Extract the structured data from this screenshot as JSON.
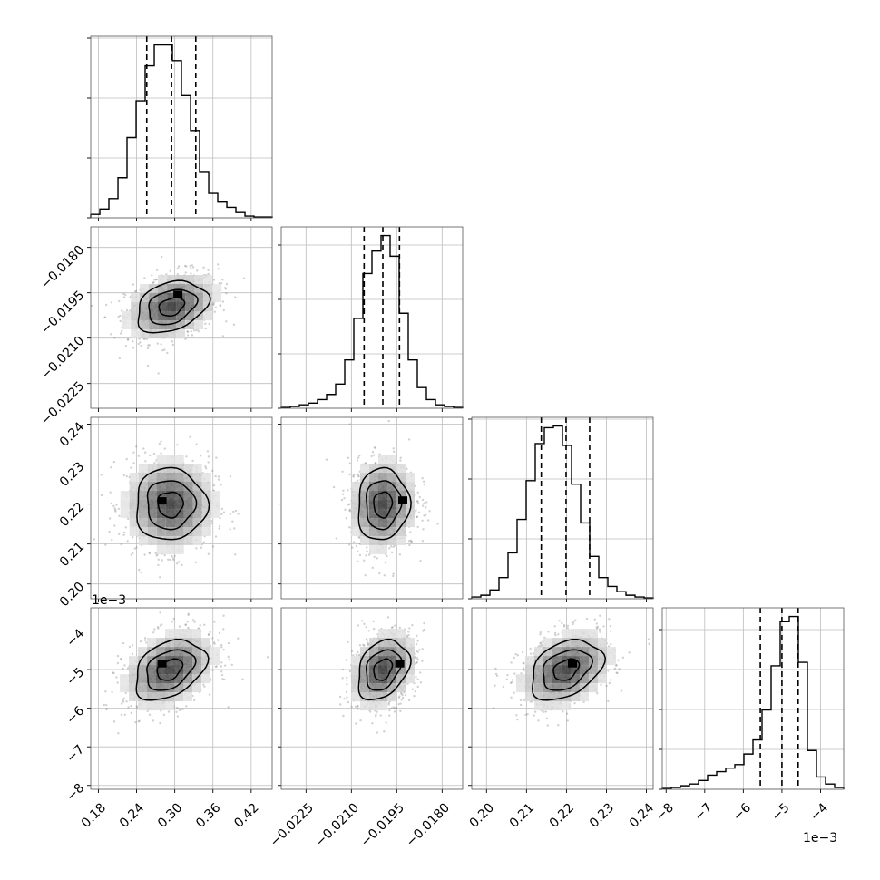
{
  "chart_data": {
    "type": "corner",
    "grid": true,
    "parameters": [
      {
        "index": 0,
        "range": [
          0.168,
          0.453
        ],
        "ticks": [
          0.18,
          0.24,
          0.3,
          0.36,
          0.42
        ],
        "tick_labels": [
          "0.18",
          "0.24",
          "0.30",
          "0.36",
          "0.42"
        ],
        "offset_text": "",
        "quantiles": [
          0.256,
          0.295,
          0.333
        ],
        "hist_bins": [
          0.168,
          0.1823,
          0.1965,
          0.2108,
          0.225,
          0.2393,
          0.2535,
          0.2678,
          0.282,
          0.2963,
          0.3105,
          0.3248,
          0.339,
          0.3533,
          0.3675,
          0.3818,
          0.396,
          0.4103,
          0.4245,
          0.4388,
          0.453
        ],
        "hist_counts": [
          2,
          5,
          11,
          23,
          46,
          67,
          87,
          99,
          99,
          90,
          70,
          50,
          26,
          14,
          9,
          6,
          3,
          1,
          0.5,
          0.5
        ],
        "hist_ticks_fraction": [
          0.0,
          0.33,
          0.66,
          0.99
        ]
      },
      {
        "index": 1,
        "range": [
          -0.02332,
          -0.01732
        ],
        "ticks": [
          -0.0225,
          -0.021,
          -0.0195,
          -0.018
        ],
        "tick_labels": [
          "−0.0225",
          "−0.0210",
          "−0.0195",
          "−0.0180"
        ],
        "offset_text": "",
        "quantiles": [
          -0.02058,
          -0.01996,
          -0.01941
        ],
        "hist_bins": [
          -0.02332,
          -0.02302,
          -0.02272,
          -0.02242,
          -0.02212,
          -0.02182,
          -0.02152,
          -0.02122,
          -0.02092,
          -0.02062,
          -0.02032,
          -0.02002,
          -0.01972,
          -0.01942,
          -0.01912,
          -0.01882,
          -0.01852,
          -0.01822,
          -0.01792,
          -0.01762,
          -0.01732
        ],
        "hist_counts": [
          0.5,
          1,
          2,
          3,
          5,
          8,
          14,
          28,
          52,
          78,
          91,
          100,
          88,
          55,
          28,
          12,
          5,
          2,
          1,
          0.5
        ],
        "hist_ticks_fraction": [
          0.0,
          0.3,
          0.6,
          0.9
        ]
      },
      {
        "index": 2,
        "range": [
          0.1963,
          0.2417
        ],
        "ticks": [
          0.2,
          0.21,
          0.22,
          0.23,
          0.24
        ],
        "tick_labels": [
          "0.20",
          "0.21",
          "0.22",
          "0.23",
          "0.24"
        ],
        "offset_text": "",
        "quantiles": [
          0.2137,
          0.2199,
          0.2258
        ],
        "hist_bins": [
          0.1963,
          0.19857,
          0.20084,
          0.20311,
          0.20538,
          0.20765,
          0.20992,
          0.21219,
          0.21446,
          0.21673,
          0.219,
          0.22127,
          0.22354,
          0.22581,
          0.22808,
          0.23035,
          0.23262,
          0.23489,
          0.23716,
          0.23943,
          0.2417
        ],
        "hist_counts": [
          1,
          2,
          5,
          12,
          26,
          45,
          67,
          88,
          97,
          98,
          87,
          65,
          43,
          24,
          12,
          7,
          4,
          2,
          1,
          0.5
        ],
        "hist_ticks_fraction": [
          0.0,
          0.33,
          0.66,
          0.99
        ]
      },
      {
        "index": 3,
        "range": [
          -8.1,
          -3.4
        ],
        "ticks": [
          -8,
          -7,
          -6,
          -5,
          -4
        ],
        "tick_labels": [
          "−8",
          "−7",
          "−6",
          "−5",
          "−4"
        ],
        "offset_text": "1e−3",
        "quantiles": [
          -5.56,
          -5.0,
          -4.58
        ],
        "hist_bins": [
          -8.1,
          -7.865,
          -7.63,
          -7.395,
          -7.16,
          -6.925,
          -6.69,
          -6.455,
          -6.22,
          -5.985,
          -5.75,
          -5.515,
          -5.28,
          -5.045,
          -4.81,
          -4.575,
          -4.34,
          -4.105,
          -3.87,
          -3.635,
          -3.4
        ],
        "hist_counts": [
          0.5,
          1,
          2,
          3,
          5,
          8,
          10,
          12,
          14,
          20,
          28,
          45,
          70,
          95,
          98,
          72,
          22,
          7,
          3,
          1
        ],
        "hist_ticks_fraction": [
          0.0,
          0.22,
          0.44,
          0.66,
          0.88
        ]
      }
    ],
    "pairs": [
      {
        "x": 0,
        "y": 1,
        "center": [
          0.295,
          -0.01996
        ],
        "spread": [
          0.036,
          0.00055
        ],
        "rho": 0.3,
        "peak": [
          0.305,
          -0.01955
        ],
        "levels": [
          1,
          2,
          3
        ]
      },
      {
        "x": 0,
        "y": 2,
        "center": [
          0.293,
          0.2199
        ],
        "spread": [
          0.036,
          0.0058
        ],
        "rho": 0.0,
        "peak": [
          0.28,
          0.2208
        ],
        "levels": [
          1,
          2,
          3
        ]
      },
      {
        "x": 1,
        "y": 2,
        "center": [
          -0.01996,
          0.2199
        ],
        "spread": [
          0.00055,
          0.0058
        ],
        "rho": 0.05,
        "peak": [
          -0.0193,
          0.221
        ],
        "levels": [
          1,
          2,
          3
        ]
      },
      {
        "x": 0,
        "y": 3,
        "center": [
          0.292,
          -5.0
        ],
        "spread": [
          0.036,
          0.5
        ],
        "rho": 0.35,
        "peak": [
          0.28,
          -4.85
        ],
        "levels": [
          1,
          2,
          3
        ]
      },
      {
        "x": 1,
        "y": 3,
        "center": [
          -0.01996,
          -5.0
        ],
        "spread": [
          0.00055,
          0.5
        ],
        "rho": 0.3,
        "peak": [
          -0.0194,
          -4.85
        ],
        "levels": [
          1,
          2,
          3
        ]
      },
      {
        "x": 2,
        "y": 3,
        "center": [
          0.2199,
          -5.0
        ],
        "spread": [
          0.0058,
          0.5
        ],
        "rho": 0.35,
        "peak": [
          0.2215,
          -4.85
        ],
        "levels": [
          1,
          2,
          3
        ]
      }
    ],
    "y_offset_text": "1e−3",
    "x_offset_text": "1e−3"
  }
}
